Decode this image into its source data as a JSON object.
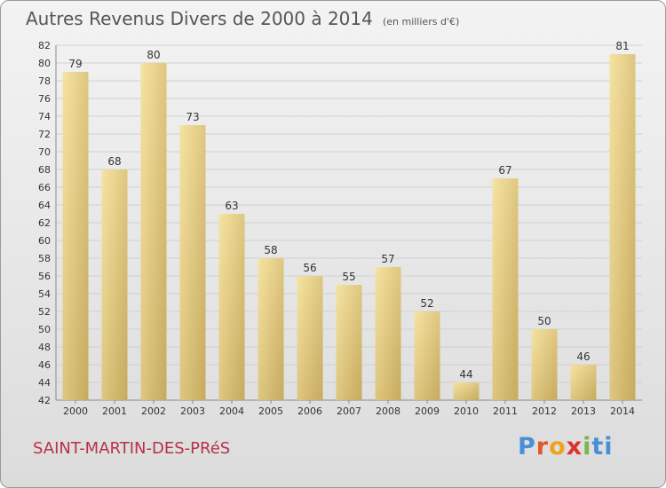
{
  "title": "Autres Revenus Divers de 2000 à 2014",
  "subtitle": "(en milliers d'€)",
  "commune": "SAINT-MARTIN-DES-PRéS",
  "logo": {
    "text": "Proxiti",
    "colors": [
      "#4a8fd6",
      "#e3572b",
      "#f0a21c",
      "#e0322a",
      "#7ab648",
      "#4a8fd6"
    ]
  },
  "chart_data": {
    "type": "bar",
    "categories": [
      "2000",
      "2001",
      "2002",
      "2003",
      "2004",
      "2005",
      "2006",
      "2007",
      "2008",
      "2009",
      "2010",
      "2011",
      "2012",
      "2013",
      "2014"
    ],
    "values": [
      79,
      68,
      80,
      73,
      63,
      58,
      56,
      55,
      57,
      52,
      44,
      67,
      50,
      46,
      81
    ],
    "ylim": [
      42,
      82
    ],
    "yticks": [
      42,
      44,
      46,
      48,
      50,
      52,
      54,
      56,
      58,
      60,
      62,
      64,
      66,
      68,
      70,
      72,
      74,
      76,
      78,
      80,
      82
    ],
    "grid": true,
    "colors": {
      "bar_light": "#f4dd95",
      "bar_dark": "#c8ad63",
      "grid": "#d0d0d0",
      "axis": "#8a8a8a",
      "text": "#333333"
    }
  }
}
